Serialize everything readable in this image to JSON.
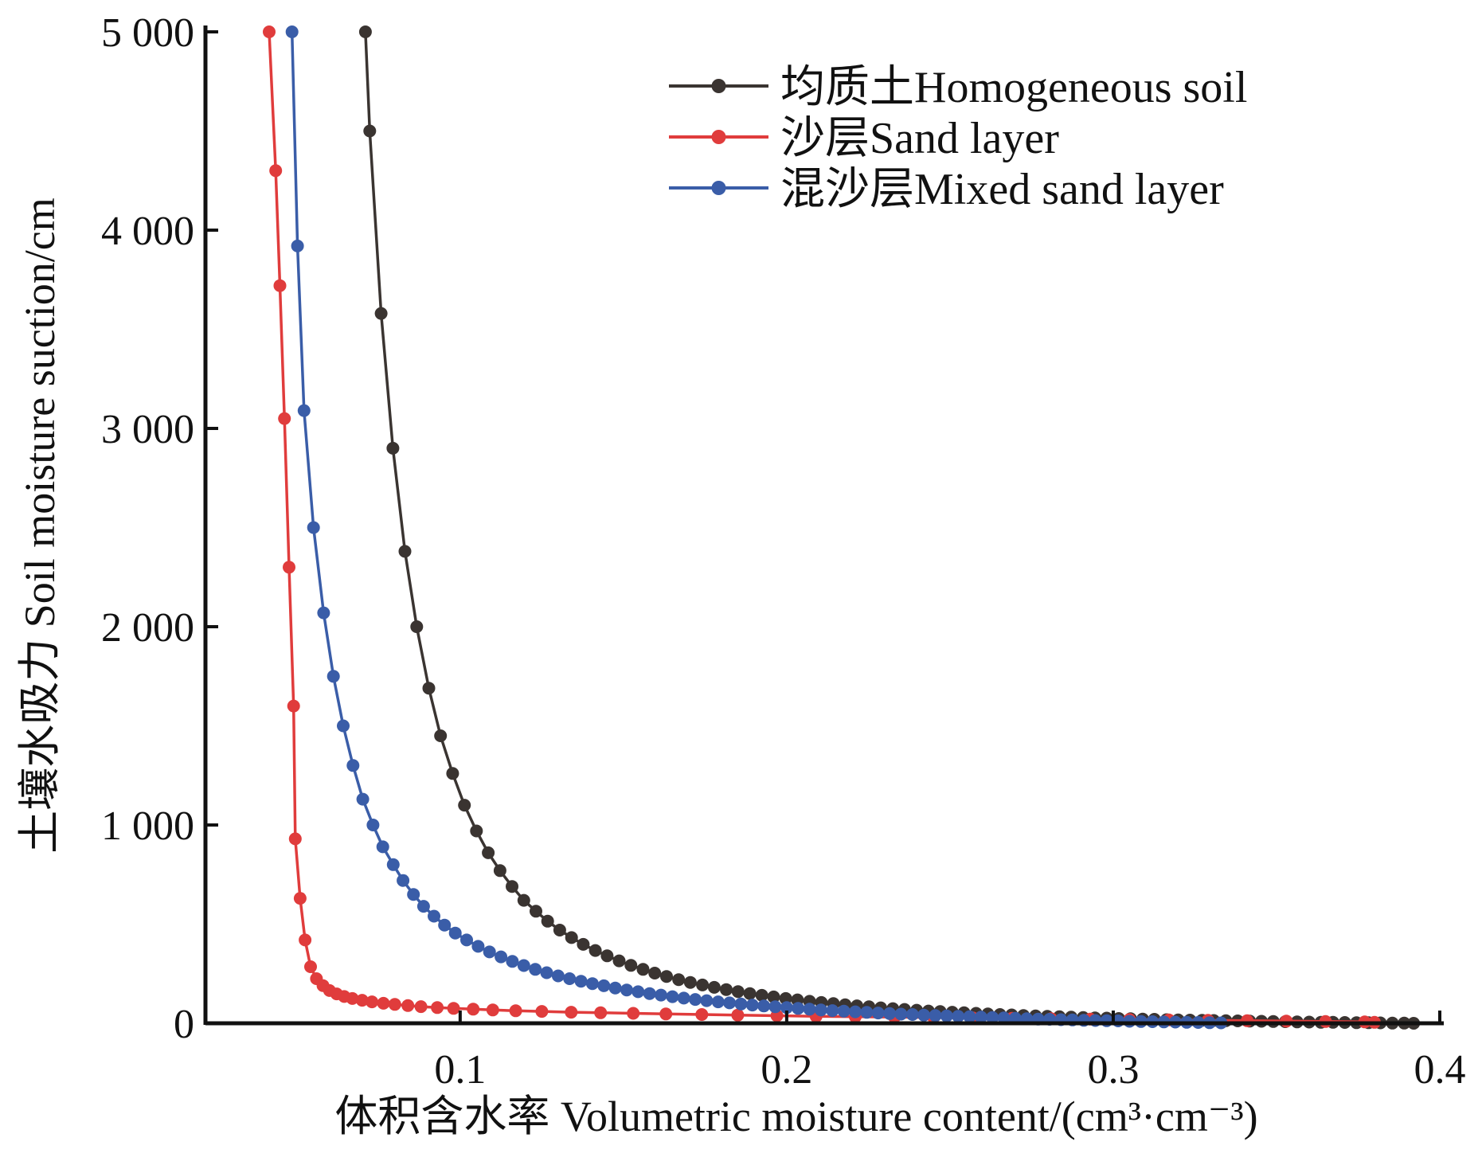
{
  "chart_data": {
    "type": "line",
    "title": "",
    "xlabel": "体积含水率  Volumetric moisture content/(cm³·cm⁻³)",
    "ylabel": "土壤水吸力  Soil moisture suction/cm",
    "xlim": [
      0.022,
      0.4
    ],
    "ylim": [
      0,
      5000
    ],
    "x_ticks": [
      0.1,
      0.2,
      0.3,
      0.4
    ],
    "x_tick_labels": [
      "0.1",
      "0.2",
      "0.3",
      "0.4"
    ],
    "y_ticks": [
      0,
      1000,
      2000,
      3000,
      4000,
      5000
    ],
    "y_tick_labels": [
      "0",
      "1 000",
      "2 000",
      "3 000",
      "4 000",
      "5 000"
    ],
    "grid": false,
    "legend_position": "top-right",
    "series": [
      {
        "name": "均质土Homogeneous soil",
        "color": "#3a3431",
        "x": [
          0.071,
          0.0723,
          0.0758,
          0.0794,
          0.0831,
          0.0867,
          0.0904,
          0.094,
          0.0977,
          0.1013,
          0.105,
          0.1086,
          0.1122,
          0.1159,
          0.1195,
          0.1232,
          0.1268,
          0.1305,
          0.1341,
          0.1377,
          0.1414,
          0.145,
          0.1487,
          0.1523,
          0.156,
          0.1596,
          0.1632,
          0.1669,
          0.1705,
          0.1742,
          0.1778,
          0.1815,
          0.1851,
          0.1887,
          0.1924,
          0.196,
          0.1997,
          0.2033,
          0.207,
          0.2106,
          0.2143,
          0.2179,
          0.2215,
          0.2252,
          0.2288,
          0.2325,
          0.2361,
          0.2398,
          0.2434,
          0.247,
          0.2507,
          0.2543,
          0.258,
          0.2616,
          0.2653,
          0.2689,
          0.2725,
          0.2762,
          0.2798,
          0.2835,
          0.2871,
          0.2908,
          0.2944,
          0.298,
          0.3017,
          0.3053,
          0.309,
          0.3126,
          0.3163,
          0.3199,
          0.3235,
          0.3272,
          0.3308,
          0.3345,
          0.3381,
          0.3418,
          0.3454,
          0.349,
          0.3527,
          0.3563,
          0.36,
          0.3636,
          0.3673,
          0.3709,
          0.3745,
          0.3782,
          0.3818,
          0.3855,
          0.3891,
          0.392
        ],
        "y": [
          5000,
          4500,
          3580,
          2900,
          2380,
          2000,
          1690,
          1450,
          1260,
          1100,
          970,
          860,
          770,
          690,
          620,
          565,
          515,
          470,
          432,
          398,
          367,
          340,
          315,
          292,
          272,
          253,
          236,
          220,
          206,
          193,
          181,
          170,
          160,
          150,
          141,
          133,
          125,
          118,
          111,
          105,
          99,
          93,
          88,
          83,
          78,
          74,
          70,
          66,
          62,
          59,
          56,
          53,
          50,
          47,
          44,
          42,
          39,
          37,
          35,
          33,
          31,
          29,
          27,
          26,
          24,
          23,
          21,
          20,
          18,
          17,
          16,
          15,
          14,
          13,
          12,
          11,
          10,
          9,
          8,
          7,
          6,
          5,
          5,
          4,
          3,
          3,
          2,
          1,
          1,
          0
        ]
      },
      {
        "name": "沙层Sand layer",
        "color": "#e03c3c",
        "x": [
          0.0415,
          0.0435,
          0.0448,
          0.0462,
          0.0476,
          0.049,
          0.0495,
          0.051,
          0.0525,
          0.0542,
          0.056,
          0.058,
          0.06,
          0.0622,
          0.0645,
          0.067,
          0.07,
          0.073,
          0.0765,
          0.08,
          0.084,
          0.088,
          0.093,
          0.098,
          0.104,
          0.11,
          0.117,
          0.125,
          0.134,
          0.143,
          0.153,
          0.163,
          0.174,
          0.185,
          0.197,
          0.209,
          0.221,
          0.233,
          0.245,
          0.257,
          0.269,
          0.281,
          0.293,
          0.305,
          0.317,
          0.329,
          0.341,
          0.353,
          0.365,
          0.377,
          0.38
        ],
        "y": [
          5000,
          4300,
          3720,
          3050,
          2300,
          1600,
          930,
          630,
          420,
          285,
          225,
          190,
          165,
          148,
          135,
          125,
          116,
          108,
          101,
          95,
          89,
          84,
          79,
          75,
          71,
          67,
          63,
          60,
          56,
          53,
          50,
          47,
          44,
          41,
          38,
          35,
          33,
          31,
          29,
          27,
          25,
          23,
          21,
          19,
          17,
          15,
          13,
          11,
          9,
          7,
          5
        ]
      },
      {
        "name": "混沙层Mixed sand layer",
        "color": "#3a5da8",
        "x": [
          0.0485,
          0.0502,
          0.0522,
          0.0551,
          0.0582,
          0.0612,
          0.0642,
          0.0672,
          0.0702,
          0.0733,
          0.0763,
          0.0795,
          0.0825,
          0.0857,
          0.0888,
          0.092,
          0.0952,
          0.0985,
          0.102,
          0.1055,
          0.109,
          0.1125,
          0.116,
          0.1195,
          0.123,
          0.1265,
          0.13,
          0.1335,
          0.137,
          0.1405,
          0.144,
          0.1475,
          0.151,
          0.1545,
          0.158,
          0.1615,
          0.165,
          0.1685,
          0.172,
          0.1755,
          0.179,
          0.1825,
          0.186,
          0.1895,
          0.193,
          0.1965,
          0.2,
          0.2035,
          0.207,
          0.2105,
          0.214,
          0.2175,
          0.221,
          0.2245,
          0.228,
          0.2315,
          0.235,
          0.2385,
          0.242,
          0.2455,
          0.249,
          0.2525,
          0.256,
          0.2595,
          0.263,
          0.2665,
          0.27,
          0.2735,
          0.277,
          0.2805,
          0.284,
          0.2875,
          0.291,
          0.2945,
          0.298,
          0.3015,
          0.305,
          0.3085,
          0.312,
          0.3155,
          0.319,
          0.3225,
          0.326,
          0.3295,
          0.333
        ],
        "y": [
          5000,
          3920,
          3090,
          2500,
          2070,
          1750,
          1500,
          1300,
          1130,
          1000,
          890,
          800,
          720,
          650,
          590,
          540,
          495,
          455,
          420,
          388,
          360,
          335,
          312,
          291,
          272,
          255,
          239,
          225,
          212,
          200,
          189,
          178,
          168,
          159,
          150,
          142,
          134,
          127,
          120,
          114,
          108,
          103,
          97,
          92,
          87,
          83,
          79,
          75,
          71,
          67,
          64,
          61,
          58,
          55,
          52,
          49,
          46,
          44,
          41,
          39,
          37,
          35,
          33,
          31,
          29,
          27,
          25,
          23,
          21,
          20,
          18,
          17,
          15,
          14,
          13,
          12,
          10,
          9,
          8,
          7,
          6,
          5,
          4,
          3,
          2
        ]
      }
    ]
  }
}
